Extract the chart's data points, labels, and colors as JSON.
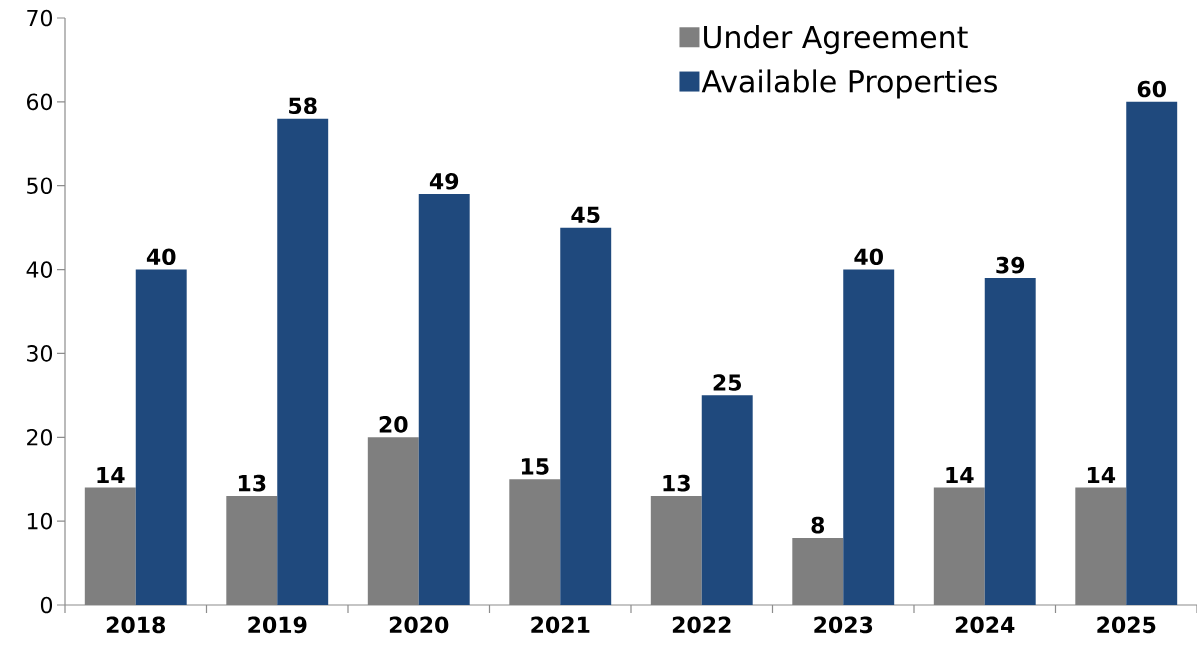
{
  "chart_data": {
    "type": "bar",
    "categories": [
      "2018",
      "2019",
      "2020",
      "2021",
      "2022",
      "2023",
      "2024",
      "2025"
    ],
    "series": [
      {
        "name": "Under Agreement",
        "color": "#7f7f7f",
        "values": [
          14,
          13,
          20,
          15,
          13,
          8,
          14,
          14
        ]
      },
      {
        "name": "Available Properties",
        "color": "#1f497d",
        "values": [
          40,
          58,
          49,
          45,
          25,
          40,
          39,
          60
        ]
      }
    ],
    "ylim": [
      0,
      70
    ],
    "yticks": [
      0,
      10,
      20,
      30,
      40,
      50,
      60,
      70
    ],
    "data_labels": true,
    "legend": "top right",
    "grid": false
  }
}
